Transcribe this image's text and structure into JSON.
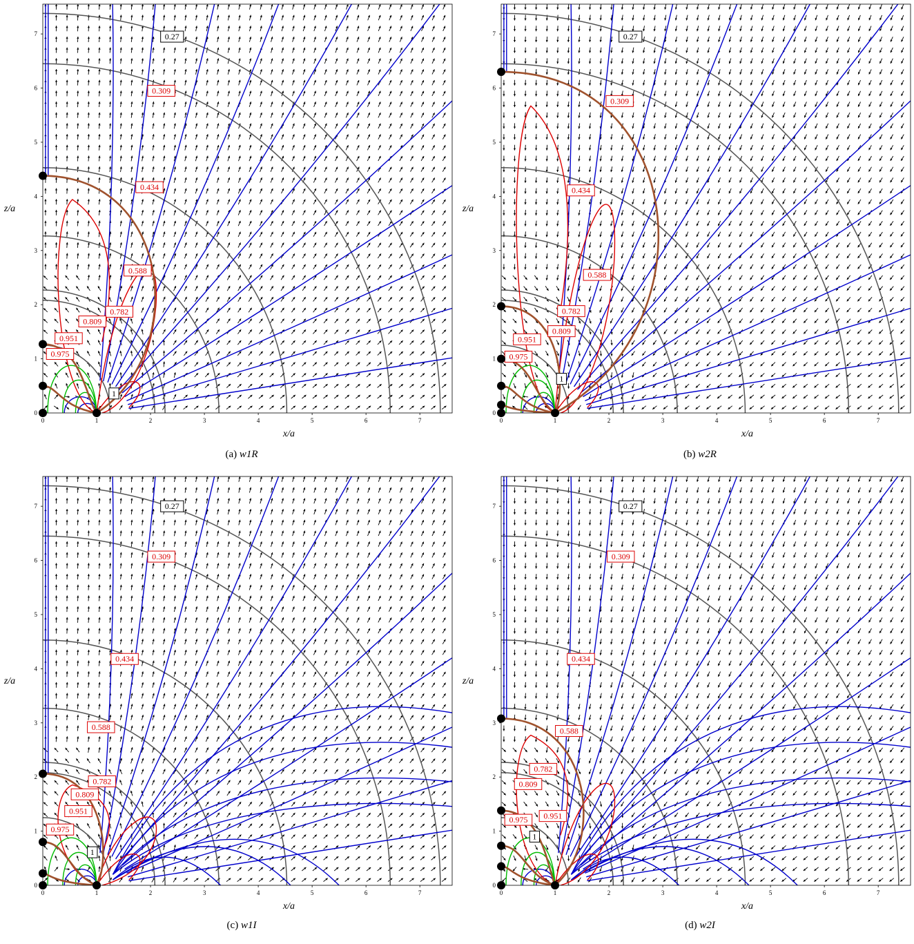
{
  "chart_data": [
    {
      "type": "vector-field",
      "caption_tag": "(a)",
      "caption_name": "w1R",
      "xlabel": "x/a",
      "ylabel": "z/a",
      "xlim": [
        0,
        7.6
      ],
      "ylim": [
        0,
        7.55
      ],
      "xticks": [
        "0",
        "1",
        "2",
        "3",
        "4",
        "5",
        "6",
        "7"
      ],
      "yticks": [
        "0",
        "1",
        "2",
        "3",
        "4",
        "5",
        "6",
        "7"
      ],
      "arrows_direction": "up",
      "equipotential_radii": [
        1.25,
        2.08,
        2.27,
        3.27,
        4.53,
        6.45,
        7.38
      ],
      "contour_labels": [
        {
          "text": "0.27",
          "color": "black",
          "at": [
            2.4,
            6.95
          ]
        },
        {
          "text": "0.309",
          "color": "red",
          "at": [
            2.2,
            5.95
          ]
        },
        {
          "text": "0.434",
          "color": "red",
          "at": [
            1.98,
            4.17
          ]
        },
        {
          "text": "0.588",
          "color": "red",
          "at": [
            1.76,
            2.63
          ]
        },
        {
          "text": "0.782",
          "color": "red",
          "at": [
            1.42,
            1.87
          ]
        },
        {
          "text": "0.809",
          "color": "red",
          "at": [
            0.92,
            1.69
          ]
        },
        {
          "text": "0.951",
          "color": "red",
          "at": [
            0.48,
            1.38
          ]
        },
        {
          "text": "0.975",
          "color": "red",
          "at": [
            0.32,
            1.09
          ]
        },
        {
          "text": "1",
          "color": "black",
          "at": [
            1.32,
            0.36
          ]
        }
      ],
      "nodes_on_axis": [
        4.38,
        1.27,
        0.5,
        0.0
      ],
      "separatrix_top": 4.38
    },
    {
      "type": "vector-field",
      "caption_tag": "(b)",
      "caption_name": "w2R",
      "xlabel": "x/a",
      "ylabel": "z/a",
      "xlim": [
        0,
        7.6
      ],
      "ylim": [
        0,
        7.55
      ],
      "xticks": [
        "0",
        "1",
        "2",
        "3",
        "4",
        "5",
        "6",
        "7"
      ],
      "yticks": [
        "0",
        "1",
        "2",
        "3",
        "4",
        "5",
        "6",
        "7"
      ],
      "arrows_direction": "down",
      "equipotential_radii": [
        1.25,
        2.08,
        2.27,
        3.27,
        4.53,
        6.45,
        7.38
      ],
      "contour_labels": [
        {
          "text": "0.27",
          "color": "black",
          "at": [
            2.4,
            6.95
          ]
        },
        {
          "text": "0.309",
          "color": "red",
          "at": [
            2.2,
            5.76
          ]
        },
        {
          "text": "0.434",
          "color": "red",
          "at": [
            1.48,
            4.11
          ]
        },
        {
          "text": "0.588",
          "color": "red",
          "at": [
            1.78,
            2.55
          ]
        },
        {
          "text": "0.782",
          "color": "red",
          "at": [
            1.3,
            1.88
          ]
        },
        {
          "text": "0.809",
          "color": "red",
          "at": [
            1.12,
            1.51
          ]
        },
        {
          "text": "0.951",
          "color": "red",
          "at": [
            0.48,
            1.36
          ]
        },
        {
          "text": "0.975",
          "color": "red",
          "at": [
            0.32,
            1.04
          ]
        },
        {
          "text": "1",
          "color": "black",
          "at": [
            1.12,
            0.63
          ]
        }
      ],
      "nodes_on_axis": [
        6.3,
        1.97,
        1.0,
        0.5,
        0.15,
        0.0
      ],
      "separatrix_top": 6.3
    },
    {
      "type": "vector-field",
      "caption_tag": "(c)",
      "caption_name": "w1I",
      "xlabel": "x/a",
      "ylabel": "z/a",
      "xlim": [
        0,
        7.6
      ],
      "ylim": [
        0,
        7.55
      ],
      "xticks": [
        "0",
        "1",
        "2",
        "3",
        "4",
        "5",
        "6",
        "7"
      ],
      "yticks": [
        "0",
        "1",
        "2",
        "3",
        "4",
        "5",
        "6",
        "7"
      ],
      "arrows_direction": "up",
      "equipotential_radii": [
        1.25,
        2.08,
        2.27,
        3.27,
        4.53,
        6.45,
        7.38
      ],
      "contour_labels": [
        {
          "text": "0.27",
          "color": "black",
          "at": [
            2.4,
            7.0
          ]
        },
        {
          "text": "0.309",
          "color": "red",
          "at": [
            2.2,
            6.07
          ]
        },
        {
          "text": "0.434",
          "color": "red",
          "at": [
            1.52,
            4.18
          ]
        },
        {
          "text": "0.588",
          "color": "red",
          "at": [
            1.08,
            2.92
          ]
        },
        {
          "text": "0.782",
          "color": "red",
          "at": [
            1.1,
            1.92
          ]
        },
        {
          "text": "0.809",
          "color": "red",
          "at": [
            0.78,
            1.68
          ]
        },
        {
          "text": "0.951",
          "color": "red",
          "at": [
            0.66,
            1.37
          ]
        },
        {
          "text": "0.975",
          "color": "red",
          "at": [
            0.32,
            1.03
          ]
        },
        {
          "text": "1",
          "color": "black",
          "at": [
            0.92,
            0.61
          ]
        }
      ],
      "nodes_on_axis": [
        2.06,
        0.8,
        0.22,
        0.0
      ],
      "separatrix_top": 2.06
    },
    {
      "type": "vector-field",
      "caption_tag": "(d)",
      "caption_name": "w2I",
      "xlabel": "x/a",
      "ylabel": "z/a",
      "xlim": [
        0,
        7.6
      ],
      "ylim": [
        0,
        7.55
      ],
      "xticks": [
        "0",
        "1",
        "2",
        "3",
        "4",
        "5",
        "6",
        "7"
      ],
      "yticks": [
        "0",
        "1",
        "2",
        "3",
        "4",
        "5",
        "6",
        "7"
      ],
      "arrows_direction": "down",
      "equipotential_radii": [
        1.25,
        2.08,
        2.27,
        3.27,
        4.53,
        6.45,
        7.38
      ],
      "contour_labels": [
        {
          "text": "0.27",
          "color": "black",
          "at": [
            2.4,
            7.0
          ]
        },
        {
          "text": "0.309",
          "color": "red",
          "at": [
            2.22,
            6.07
          ]
        },
        {
          "text": "0.434",
          "color": "red",
          "at": [
            1.48,
            4.18
          ]
        },
        {
          "text": "0.588",
          "color": "red",
          "at": [
            1.26,
            2.85
          ]
        },
        {
          "text": "0.782",
          "color": "red",
          "at": [
            0.78,
            2.15
          ]
        },
        {
          "text": "0.809",
          "color": "red",
          "at": [
            0.5,
            1.87
          ]
        },
        {
          "text": "0.951",
          "color": "red",
          "at": [
            0.96,
            1.28
          ]
        },
        {
          "text": "0.975",
          "color": "red",
          "at": [
            0.32,
            1.21
          ]
        },
        {
          "text": "1",
          "color": "black",
          "at": [
            0.62,
            0.9
          ]
        }
      ],
      "nodes_on_axis": [
        3.08,
        1.38,
        0.73,
        0.35,
        0.0
      ],
      "separatrix_top": 3.08
    }
  ],
  "colors": {
    "field_lines": "#0000cc",
    "separatrix": "#a0522d",
    "red_contours": "#dd0000",
    "green_contours": "#00bb00",
    "equipotential": "#555555",
    "arrows": "#000000"
  }
}
